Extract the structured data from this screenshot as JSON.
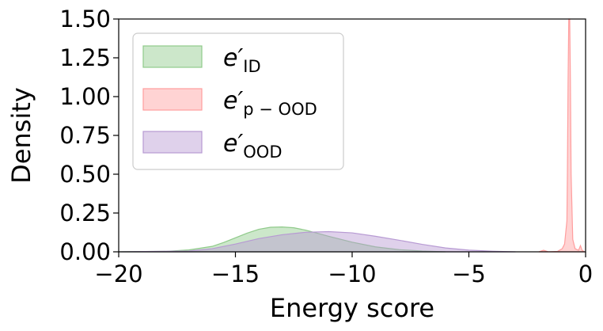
{
  "chart_data": {
    "type": "area",
    "xlabel": "Energy score",
    "ylabel": "Density",
    "xlim": [
      -20,
      0
    ],
    "ylim": [
      0,
      1.5
    ],
    "xticks": [
      -20,
      -15,
      -10,
      -5,
      0
    ],
    "xtick_labels": [
      "−20",
      "−15",
      "−10",
      "−5",
      "0"
    ],
    "yticks": [
      0,
      0.25,
      0.5,
      0.75,
      1.0,
      1.25,
      1.5
    ],
    "ytick_labels": [
      "0.00",
      "0.25",
      "0.50",
      "0.75",
      "1.00",
      "1.25",
      "1.50"
    ],
    "grid": false,
    "legend_position": "top-left",
    "series": [
      {
        "name_base": "e′",
        "name_sub": "ID",
        "color": "#8fca8a",
        "x": [
          -20,
          -18,
          -17,
          -16,
          -15.5,
          -15,
          -14.5,
          -14,
          -13.5,
          -13,
          -12.5,
          -12,
          -11.5,
          -11,
          -10,
          -9,
          -8,
          -7,
          -6
        ],
        "values": [
          0.0,
          0.003,
          0.012,
          0.035,
          0.06,
          0.09,
          0.12,
          0.145,
          0.158,
          0.16,
          0.155,
          0.14,
          0.12,
          0.1,
          0.062,
          0.032,
          0.014,
          0.005,
          0.0
        ]
      },
      {
        "name_base": "e′",
        "name_sub": "p − OOD",
        "color": "#ff9e9e",
        "x": [
          -2.0,
          -1.8,
          -1.6,
          -1.2,
          -1.0,
          -0.9,
          -0.8,
          -0.78,
          -0.75,
          -0.72,
          -0.68,
          -0.65,
          -0.62,
          -0.55,
          -0.45,
          -0.3,
          -0.22,
          -0.15,
          -0.05
        ],
        "values": [
          0.0,
          0.01,
          0.0,
          0.003,
          0.02,
          0.05,
          0.2,
          0.5,
          1.1,
          1.5,
          1.5,
          1.1,
          0.5,
          0.08,
          0.02,
          0.01,
          0.04,
          0.01,
          0.0
        ]
      },
      {
        "name_base": "e′",
        "name_sub": "OOD",
        "color": "#b79ad3",
        "x": [
          -20,
          -17,
          -16,
          -15,
          -14,
          -13,
          -12,
          -11,
          -10,
          -9,
          -8,
          -7,
          -6,
          -5,
          -4,
          -3
        ],
        "values": [
          0.0,
          0.005,
          0.02,
          0.05,
          0.085,
          0.11,
          0.126,
          0.13,
          0.122,
          0.1,
          0.075,
          0.048,
          0.025,
          0.011,
          0.004,
          0.0
        ]
      }
    ]
  }
}
